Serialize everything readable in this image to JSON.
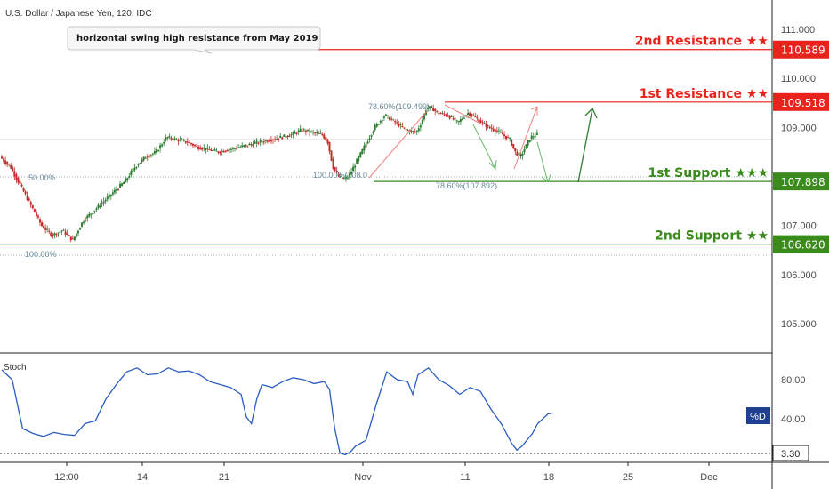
{
  "header": {
    "symbol_label": "U.S. Dollar / Japanese Yen, 120, IDC"
  },
  "annotation": {
    "text": "horizontal swing high resistance from May 2019"
  },
  "colors": {
    "resistance": "#e8231c",
    "support": "#3a8a1c",
    "bull": "#2e7d32",
    "bear": "#c62828",
    "stoch_line": "#2a5dc0",
    "percent_d_badge": "#1f3f8f",
    "fib_arrow_red": "#f08080",
    "fib_arrow_green": "#66bb6a"
  },
  "levels": [
    {
      "name": "2nd Resistance ★★",
      "value": "110.589",
      "price": 110.589,
      "kind": "resistance"
    },
    {
      "name": "1st Resistance ★★",
      "value": "109.518",
      "price": 109.518,
      "kind": "resistance"
    },
    {
      "name": "1st Support ★★★",
      "value": "107.898",
      "price": 107.898,
      "kind": "support"
    },
    {
      "name": "2nd Support ★★",
      "value": "106.620",
      "price": 106.62,
      "kind": "support"
    }
  ],
  "fib_labels": [
    {
      "text": "78.60%(109.499)",
      "price": 109.499
    },
    {
      "text": "100.00%(108.0",
      "price": 108.0
    },
    {
      "text": "78.60%(107.892)",
      "price": 107.892
    },
    {
      "text": "50.00%",
      "price": 108.0
    },
    {
      "text": "100.00%",
      "price": 106.5
    }
  ],
  "chart_data": {
    "type": "candlestick",
    "instrument": "U.S. Dollar / Japanese Yen",
    "interval": "120",
    "source": "IDC",
    "y_axis": {
      "range": [
        104.4,
        111.6
      ],
      "ticks": [
        "111.000",
        "110.000",
        "109.000",
        "107.000",
        "106.000",
        "105.000"
      ],
      "tick_values": [
        111,
        110,
        109,
        107,
        106,
        105
      ]
    },
    "x_axis": {
      "ticks": [
        "12:00",
        "14",
        "21",
        "Nov",
        "11",
        "18",
        "25",
        "Dec"
      ],
      "note": "dates in Oct–Dec 2019, 2-hour bars"
    },
    "price_path": [
      [
        0,
        108.4
      ],
      [
        4,
        108.2
      ],
      [
        8,
        107.8
      ],
      [
        12,
        107.4
      ],
      [
        16,
        107.0
      ],
      [
        20,
        106.8
      ],
      [
        24,
        106.9
      ],
      [
        28,
        106.7
      ],
      [
        32,
        107.1
      ],
      [
        36,
        107.3
      ],
      [
        40,
        107.5
      ],
      [
        44,
        107.7
      ],
      [
        48,
        107.9
      ],
      [
        52,
        108.2
      ],
      [
        56,
        108.4
      ],
      [
        60,
        108.5
      ],
      [
        64,
        108.8
      ],
      [
        68,
        108.75
      ],
      [
        72,
        108.7
      ],
      [
        76,
        108.6
      ],
      [
        80,
        108.55
      ],
      [
        84,
        108.5
      ],
      [
        88,
        108.55
      ],
      [
        92,
        108.6
      ],
      [
        96,
        108.65
      ],
      [
        100,
        108.7
      ],
      [
        104,
        108.75
      ],
      [
        108,
        108.8
      ],
      [
        112,
        108.85
      ],
      [
        116,
        108.95
      ],
      [
        120,
        108.9
      ],
      [
        124,
        108.85
      ],
      [
        126,
        108.7
      ],
      [
        128,
        108.2
      ],
      [
        130,
        108.0
      ],
      [
        132,
        107.95
      ],
      [
        134,
        108.0
      ],
      [
        136,
        108.2
      ],
      [
        140,
        108.6
      ],
      [
        144,
        109.0
      ],
      [
        148,
        109.25
      ],
      [
        152,
        109.1
      ],
      [
        156,
        108.95
      ],
      [
        160,
        108.9
      ],
      [
        162,
        109.1
      ],
      [
        164,
        109.4
      ],
      [
        166,
        109.4
      ],
      [
        168,
        109.3
      ],
      [
        172,
        109.25
      ],
      [
        176,
        109.1
      ],
      [
        180,
        109.3
      ],
      [
        184,
        109.15
      ],
      [
        188,
        109.0
      ],
      [
        192,
        108.9
      ],
      [
        196,
        108.75
      ],
      [
        198,
        108.5
      ],
      [
        200,
        108.4
      ],
      [
        202,
        108.6
      ],
      [
        204,
        108.8
      ],
      [
        206,
        108.85
      ]
    ],
    "stochastic": {
      "label": "Stoch",
      "series_name": "%D",
      "range": [
        0,
        100
      ],
      "ticks": [
        "80.00",
        "40.00"
      ],
      "tick_values": [
        80,
        40
      ],
      "level_label": "3.30",
      "level_value": 3.3,
      "values": [
        [
          0,
          90
        ],
        [
          4,
          80
        ],
        [
          8,
          30
        ],
        [
          12,
          25
        ],
        [
          16,
          22
        ],
        [
          20,
          26
        ],
        [
          24,
          24
        ],
        [
          28,
          23
        ],
        [
          32,
          35
        ],
        [
          36,
          38
        ],
        [
          40,
          60
        ],
        [
          44,
          75
        ],
        [
          48,
          88
        ],
        [
          52,
          92
        ],
        [
          56,
          85
        ],
        [
          60,
          86
        ],
        [
          64,
          92
        ],
        [
          68,
          88
        ],
        [
          72,
          89
        ],
        [
          76,
          85
        ],
        [
          80,
          78
        ],
        [
          84,
          75
        ],
        [
          88,
          72
        ],
        [
          92,
          65
        ],
        [
          94,
          42
        ],
        [
          96,
          35
        ],
        [
          98,
          60
        ],
        [
          100,
          75
        ],
        [
          104,
          72
        ],
        [
          108,
          78
        ],
        [
          112,
          82
        ],
        [
          116,
          80
        ],
        [
          120,
          76
        ],
        [
          124,
          78
        ],
        [
          126,
          70
        ],
        [
          128,
          30
        ],
        [
          130,
          5
        ],
        [
          132,
          3.3
        ],
        [
          134,
          6
        ],
        [
          136,
          12
        ],
        [
          140,
          18
        ],
        [
          144,
          55
        ],
        [
          148,
          88
        ],
        [
          152,
          80
        ],
        [
          156,
          78
        ],
        [
          158,
          65
        ],
        [
          160,
          85
        ],
        [
          164,
          92
        ],
        [
          168,
          80
        ],
        [
          172,
          74
        ],
        [
          176,
          65
        ],
        [
          180,
          72
        ],
        [
          184,
          68
        ],
        [
          188,
          50
        ],
        [
          192,
          35
        ],
        [
          196,
          15
        ],
        [
          198,
          8
        ],
        [
          200,
          12
        ],
        [
          204,
          25
        ],
        [
          206,
          35
        ],
        [
          210,
          45
        ],
        [
          212,
          46
        ]
      ]
    },
    "levels": [
      {
        "name": "2nd Resistance ★★",
        "value": 110.589
      },
      {
        "name": "1st Resistance ★★",
        "value": 109.518
      },
      {
        "name": "1st Support ★★★",
        "value": 107.898
      },
      {
        "name": "2nd Support ★★",
        "value": 106.62
      }
    ]
  }
}
